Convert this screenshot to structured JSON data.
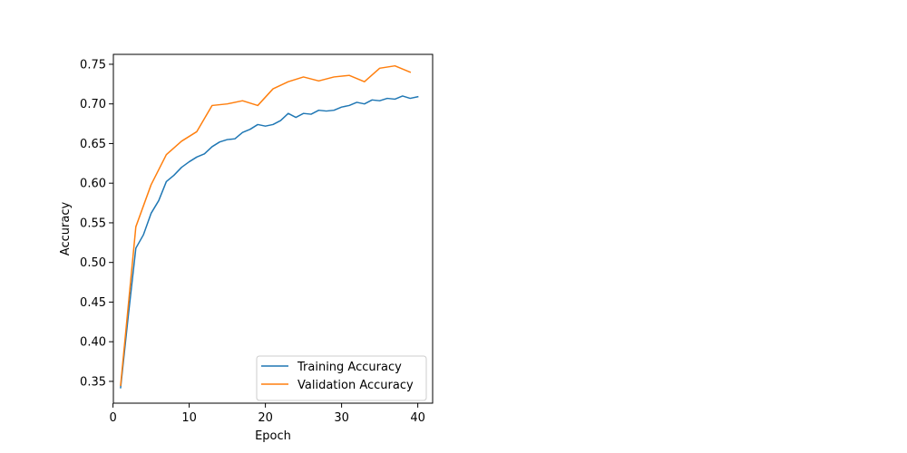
{
  "chart_data": {
    "type": "line",
    "title": "",
    "xlabel": "Epoch",
    "ylabel": "Accuracy",
    "xlim": [
      0.05,
      41.95
    ],
    "ylim": [
      0.3225,
      0.7625
    ],
    "xticks": [
      0,
      10,
      20,
      30,
      40
    ],
    "xtick_labels": [
      "0",
      "10",
      "20",
      "30",
      "40"
    ],
    "yticks": [
      0.35,
      0.4,
      0.45,
      0.5,
      0.55,
      0.6,
      0.65,
      0.7,
      0.75
    ],
    "ytick_labels": [
      "0.35",
      "0.40",
      "0.45",
      "0.50",
      "0.55",
      "0.60",
      "0.65",
      "0.70",
      "0.75"
    ],
    "grid": false,
    "legend_position": "lower-right",
    "series": [
      {
        "name": "Training Accuracy",
        "color": "#1f77b4",
        "x": [
          1,
          2,
          3,
          4,
          5,
          6,
          7,
          8,
          9,
          10,
          11,
          12,
          13,
          14,
          15,
          16,
          17,
          18,
          19,
          20,
          21,
          22,
          23,
          24,
          25,
          26,
          27,
          28,
          29,
          30,
          31,
          32,
          33,
          34,
          35,
          36,
          37,
          38,
          39,
          40
        ],
        "values": [
          0.342,
          0.432,
          0.518,
          0.535,
          0.562,
          0.578,
          0.602,
          0.61,
          0.62,
          0.627,
          0.633,
          0.637,
          0.646,
          0.652,
          0.655,
          0.656,
          0.664,
          0.668,
          0.674,
          0.672,
          0.674,
          0.679,
          0.688,
          0.683,
          0.688,
          0.687,
          0.692,
          0.691,
          0.692,
          0.696,
          0.698,
          0.702,
          0.7,
          0.705,
          0.704,
          0.707,
          0.706,
          0.71,
          0.707,
          0.709
        ]
      },
      {
        "name": "Validation Accuracy",
        "color": "#ff7f0e",
        "x": [
          1,
          3,
          5,
          7,
          9,
          11,
          13,
          15,
          17,
          19,
          21,
          23,
          25,
          27,
          29,
          31,
          33,
          35,
          37,
          39
        ],
        "values": [
          0.345,
          0.545,
          0.598,
          0.636,
          0.653,
          0.665,
          0.698,
          0.7,
          0.704,
          0.698,
          0.719,
          0.728,
          0.734,
          0.729,
          0.734,
          0.736,
          0.728,
          0.745,
          0.748,
          0.74
        ]
      }
    ]
  }
}
